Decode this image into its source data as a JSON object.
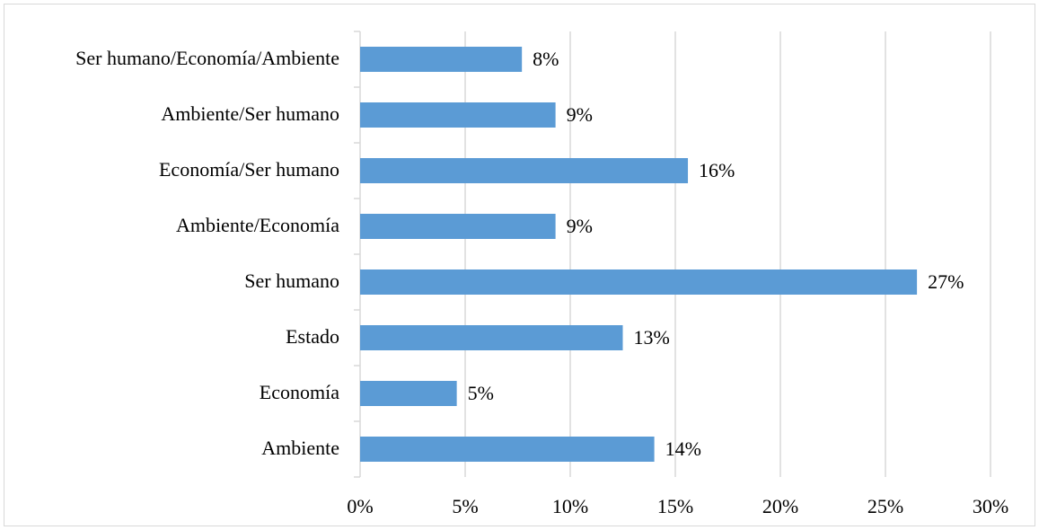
{
  "chart_data": {
    "type": "bar",
    "orientation": "horizontal",
    "categories": [
      "Ser humano/Economía/Ambiente",
      "Ambiente/Ser humano",
      "Economía/Ser humano",
      "Ambiente/Economía",
      "Ser humano",
      "Estado",
      "Economía",
      "Ambiente"
    ],
    "values": [
      7.7,
      9.3,
      15.6,
      9.3,
      26.5,
      12.5,
      4.6,
      14
    ],
    "value_labels": [
      "8%",
      "9%",
      "16%",
      "9%",
      "27%",
      "13%",
      "5%",
      "14%"
    ],
    "color": "#5b9bd5",
    "xlim": [
      0,
      30
    ],
    "xticks": [
      {
        "value": 0,
        "label": "0%"
      },
      {
        "value": 5,
        "label": "5%"
      },
      {
        "value": 10,
        "label": "10%"
      },
      {
        "value": 15,
        "label": "15%"
      },
      {
        "value": 20,
        "label": "20%"
      },
      {
        "value": 25,
        "label": "25%"
      },
      {
        "value": 30,
        "label": "30%"
      }
    ],
    "grid": true
  }
}
